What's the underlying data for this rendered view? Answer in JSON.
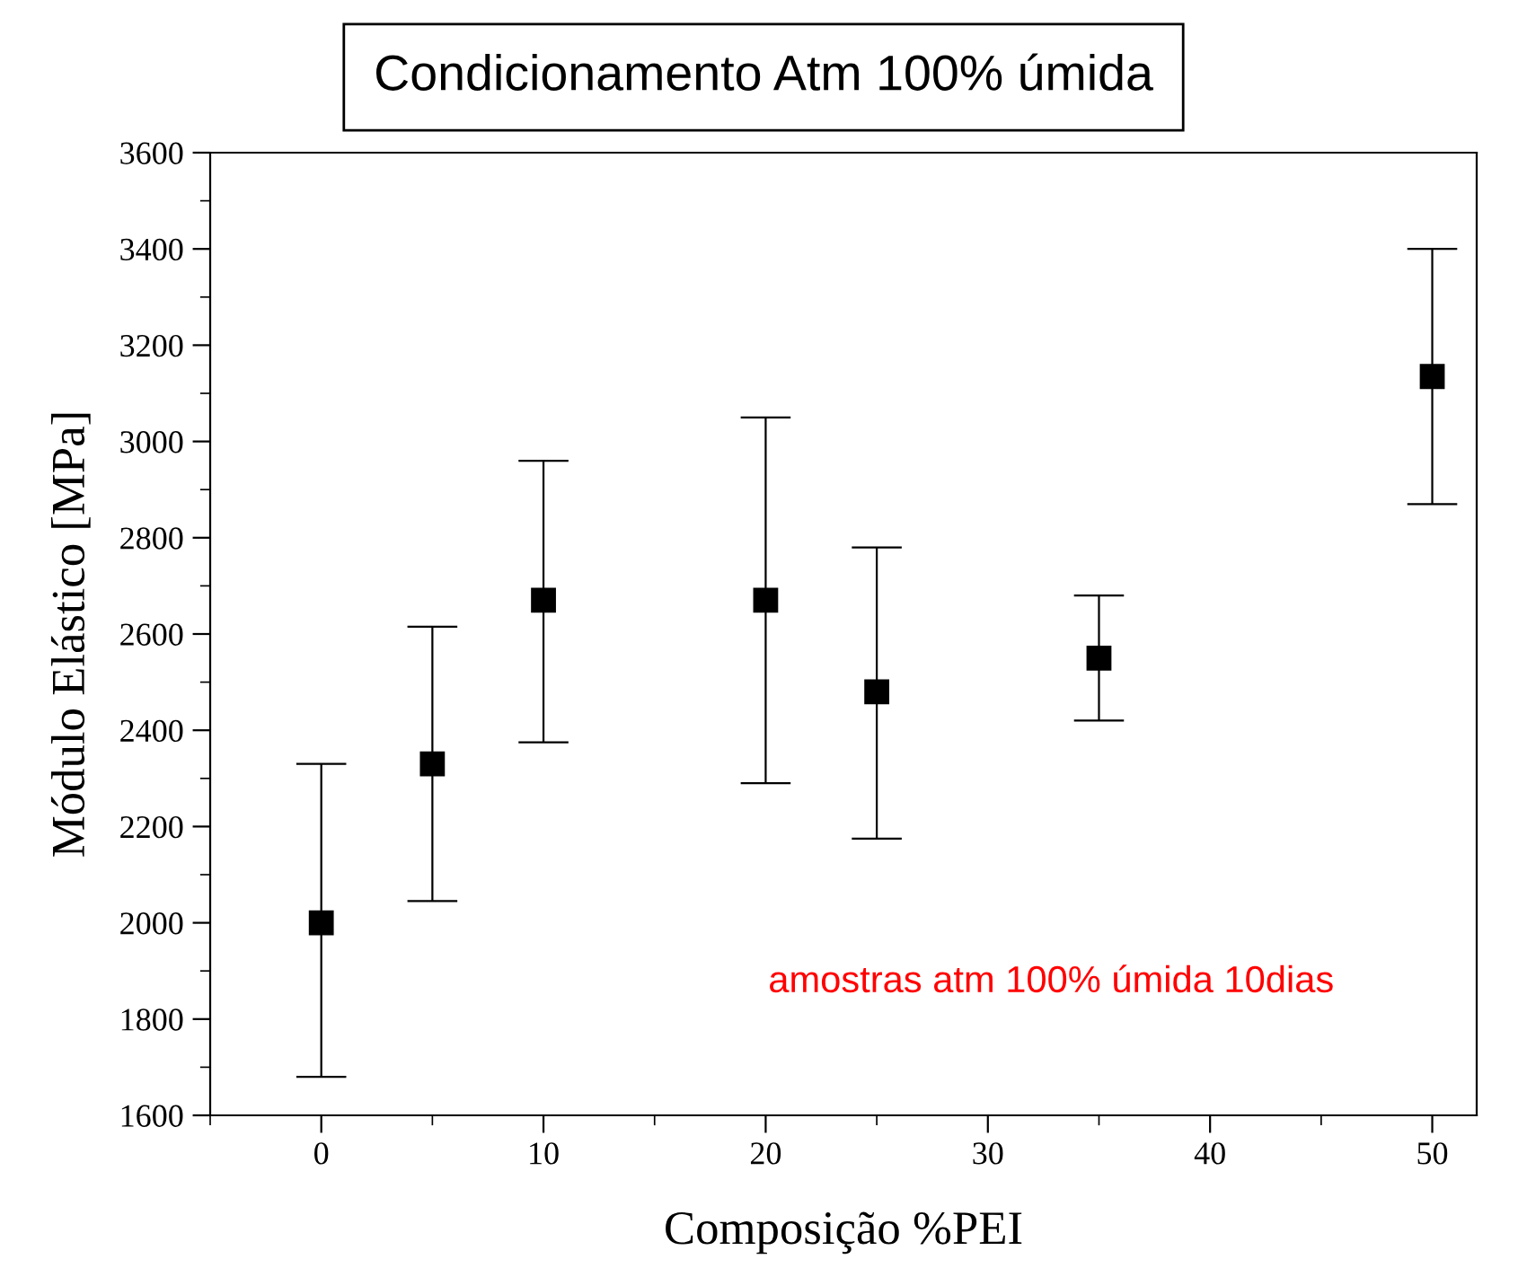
{
  "chart_data": {
    "type": "scatter",
    "title": "Condicionamento Atm 100% úmida",
    "xlabel": "Composição %PEI",
    "ylabel": "Módulo Elástico [MPa]",
    "x": [
      0,
      5,
      10,
      20,
      25,
      35,
      50
    ],
    "values": [
      2000,
      2330,
      2670,
      2670,
      2480,
      2550,
      3135
    ],
    "errors": [
      [
        1680,
        2330
      ],
      [
        2045,
        2615
      ],
      [
        2375,
        2960
      ],
      [
        2290,
        3050
      ],
      [
        2175,
        2780
      ],
      [
        2420,
        2680
      ],
      [
        2870,
        3400
      ]
    ],
    "color": "#000000",
    "marker": "square",
    "xlim": [
      -5,
      52
    ],
    "xticks": [
      0,
      10,
      20,
      30,
      40,
      50
    ],
    "ylim": [
      1600,
      3600
    ],
    "yticks": [
      1600,
      1800,
      2000,
      2200,
      2400,
      2600,
      2800,
      3000,
      3200,
      3400,
      3600
    ],
    "annotations": [
      "amostras atm 100% úmida 10dias"
    ],
    "grid": false,
    "legend": false
  }
}
